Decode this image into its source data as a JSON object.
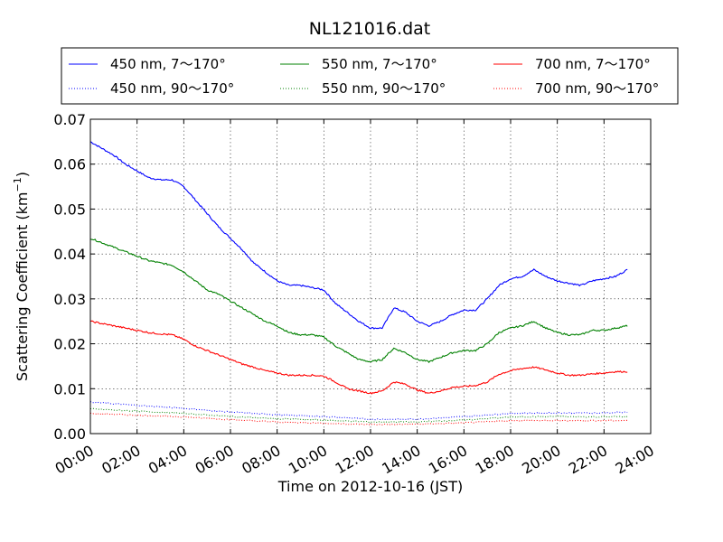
{
  "chart_data": {
    "type": "line",
    "title": "NL121016.dat",
    "xlabel": "Time on 2012-10-16 (JST)",
    "ylabel_main": "Scattering Coefficient (km",
    "ylabel_sup": "−1",
    "ylabel_end": ")",
    "xlim_hours": [
      0,
      24
    ],
    "ylim": [
      0,
      0.07
    ],
    "xticks": [
      "00:00",
      "02:00",
      "04:00",
      "06:00",
      "08:00",
      "10:00",
      "12:00",
      "14:00",
      "16:00",
      "18:00",
      "20:00",
      "22:00",
      "24:00"
    ],
    "yticks": [
      "0.00",
      "0.01",
      "0.02",
      "0.03",
      "0.04",
      "0.05",
      "0.06",
      "0.07"
    ],
    "grid": true,
    "legend_position": "top, above plot, 3 columns",
    "series": [
      {
        "name": "450 nm, 7～170°",
        "color": "#0000ff",
        "style": "solid",
        "x": [
          0,
          0.5,
          1,
          1.5,
          2,
          2.5,
          3,
          3.5,
          4,
          4.5,
          5,
          5.5,
          6,
          6.5,
          7,
          7.5,
          8,
          8.5,
          9,
          9.5,
          10,
          10.5,
          11,
          11.5,
          12,
          12.5,
          13,
          13.5,
          14,
          14.5,
          15,
          15.5,
          16,
          16.5,
          17,
          17.5,
          18,
          18.5,
          19,
          19.5,
          20,
          20.5,
          21,
          21.5,
          22,
          22.5,
          23
        ],
        "y": [
          0.065,
          0.0635,
          0.062,
          0.06,
          0.0585,
          0.057,
          0.0565,
          0.0565,
          0.055,
          0.052,
          0.049,
          0.046,
          0.0435,
          0.041,
          0.038,
          0.036,
          0.034,
          0.033,
          0.033,
          0.0325,
          0.032,
          0.029,
          0.027,
          0.025,
          0.0235,
          0.0235,
          0.028,
          0.027,
          0.025,
          0.024,
          0.025,
          0.0265,
          0.0275,
          0.0275,
          0.03,
          0.033,
          0.0345,
          0.035,
          0.0365,
          0.035,
          0.034,
          0.0335,
          0.033,
          0.034,
          0.0345,
          0.035,
          0.0365
        ]
      },
      {
        "name": "550 nm, 7～170°",
        "color": "#008000",
        "style": "solid",
        "x": [
          0,
          0.5,
          1,
          1.5,
          2,
          2.5,
          3,
          3.5,
          4,
          4.5,
          5,
          5.5,
          6,
          6.5,
          7,
          7.5,
          8,
          8.5,
          9,
          9.5,
          10,
          10.5,
          11,
          11.5,
          12,
          12.5,
          13,
          13.5,
          14,
          14.5,
          15,
          15.5,
          16,
          16.5,
          17,
          17.5,
          18,
          18.5,
          19,
          19.5,
          20,
          20.5,
          21,
          21.5,
          22,
          22.5,
          23
        ],
        "y": [
          0.0435,
          0.0425,
          0.0415,
          0.0405,
          0.0395,
          0.0385,
          0.038,
          0.0375,
          0.036,
          0.034,
          0.032,
          0.031,
          0.0295,
          0.028,
          0.0265,
          0.025,
          0.024,
          0.0225,
          0.022,
          0.022,
          0.0215,
          0.0195,
          0.018,
          0.0165,
          0.016,
          0.0165,
          0.019,
          0.018,
          0.0165,
          0.016,
          0.017,
          0.018,
          0.0185,
          0.0185,
          0.02,
          0.0225,
          0.0235,
          0.024,
          0.025,
          0.0235,
          0.0225,
          0.022,
          0.022,
          0.023,
          0.023,
          0.0235,
          0.024
        ]
      },
      {
        "name": "700 nm, 7～170°",
        "color": "#ff0000",
        "style": "solid",
        "x": [
          0,
          0.5,
          1,
          1.5,
          2,
          2.5,
          3,
          3.5,
          4,
          4.5,
          5,
          5.5,
          6,
          6.5,
          7,
          7.5,
          8,
          8.5,
          9,
          9.5,
          10,
          10.5,
          11,
          11.5,
          12,
          12.5,
          13,
          13.5,
          14,
          14.5,
          15,
          15.5,
          16,
          16.5,
          17,
          17.5,
          18,
          18.5,
          19,
          19.5,
          20,
          20.5,
          21,
          21.5,
          22,
          22.5,
          23
        ],
        "y": [
          0.025,
          0.0245,
          0.024,
          0.0235,
          0.023,
          0.0225,
          0.0222,
          0.022,
          0.021,
          0.0195,
          0.0185,
          0.0175,
          0.0165,
          0.0155,
          0.0148,
          0.014,
          0.0135,
          0.013,
          0.013,
          0.013,
          0.0128,
          0.0115,
          0.01,
          0.0095,
          0.009,
          0.0095,
          0.0115,
          0.011,
          0.0097,
          0.009,
          0.0095,
          0.0103,
          0.0105,
          0.0107,
          0.0115,
          0.0132,
          0.014,
          0.0145,
          0.0148,
          0.0142,
          0.0135,
          0.013,
          0.013,
          0.0133,
          0.0135,
          0.0138,
          0.0138
        ]
      },
      {
        "name": "450 nm, 90～170°",
        "color": "#0000ff",
        "style": "dotted",
        "x": [
          0,
          2,
          4,
          6,
          8,
          10,
          12,
          14,
          16,
          18,
          20,
          22,
          23
        ],
        "y": [
          0.007,
          0.0063,
          0.0056,
          0.0048,
          0.0042,
          0.0038,
          0.0032,
          0.0032,
          0.0038,
          0.0045,
          0.0046,
          0.0046,
          0.0048
        ]
      },
      {
        "name": "550 nm, 90～170°",
        "color": "#008000",
        "style": "dotted",
        "x": [
          0,
          2,
          4,
          6,
          8,
          10,
          12,
          14,
          16,
          18,
          20,
          22,
          23
        ],
        "y": [
          0.0055,
          0.005,
          0.0045,
          0.0038,
          0.0033,
          0.003,
          0.0026,
          0.0026,
          0.003,
          0.0037,
          0.0038,
          0.0037,
          0.0038
        ]
      },
      {
        "name": "700 nm, 90～170°",
        "color": "#ff0000",
        "style": "dotted",
        "x": [
          0,
          2,
          4,
          6,
          8,
          10,
          12,
          14,
          16,
          18,
          20,
          22,
          23
        ],
        "y": [
          0.0045,
          0.0041,
          0.0037,
          0.0031,
          0.0026,
          0.0023,
          0.002,
          0.0021,
          0.0024,
          0.0029,
          0.0029,
          0.0029,
          0.0029
        ]
      }
    ]
  }
}
